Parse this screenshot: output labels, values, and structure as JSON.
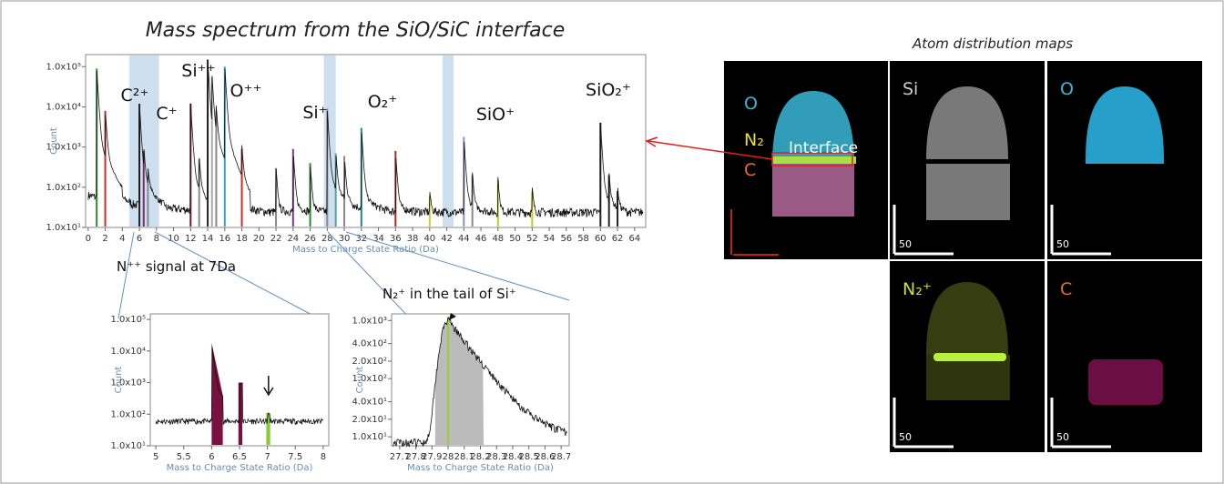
{
  "figure_title": "Mass spectrum from the SiO/SiC interface",
  "main": {
    "x_label": "Mass to Charge State Ratio (Da)",
    "y_label": "Count",
    "log_y": true,
    "xlim": [
      -0.3,
      65.3
    ],
    "xticks": [
      0,
      2,
      4,
      6,
      8,
      10,
      12,
      14,
      16,
      18,
      20,
      22,
      24,
      26,
      28,
      30,
      32,
      34,
      36,
      38,
      40,
      42,
      44,
      46,
      48,
      50,
      52,
      54,
      56,
      58,
      60,
      62,
      64
    ],
    "ylim": [
      10,
      200000
    ],
    "yticks": [
      {
        "value": 10,
        "label": "1.0x10¹"
      },
      {
        "value": 100,
        "label": "1.0x10²"
      },
      {
        "value": 1000,
        "label": "1.0x10³"
      },
      {
        "value": 10000,
        "label": "1.0x10⁴"
      },
      {
        "value": 100000,
        "label": "1.0x10⁵"
      }
    ],
    "peak_labels": [
      "C²⁺",
      "C⁺",
      "Si⁺⁺",
      "O⁺⁺",
      "Si⁺",
      "O₂⁺",
      "SiO⁺",
      "SiO₂⁺"
    ]
  },
  "inset_n": {
    "title": "N⁺⁺ signal at 7Da",
    "x_label": "Mass to Charge State Ratio (Da)",
    "y_label": "Count",
    "log_y": true,
    "xlim": [
      4.9,
      8.1
    ],
    "xticks": [
      5,
      5.5,
      6,
      6.5,
      7,
      7.5,
      8
    ],
    "ylim": [
      10,
      150000
    ],
    "yticks": [
      {
        "value": 10,
        "label": "1.0x10¹"
      },
      {
        "value": 100,
        "label": "1.0x10²"
      },
      {
        "value": 1000,
        "label": "1.0x10³"
      },
      {
        "value": 10000,
        "label": "1.0x10⁴"
      },
      {
        "value": 100000,
        "label": "1.0x10⁵"
      }
    ]
  },
  "inset_n2": {
    "title": "N₂⁺ in the tail of Si⁺",
    "x_label": "Mass to Charge State Ratio (Da)",
    "y_label": "Count",
    "log_y": true,
    "xlim": [
      27.65,
      28.75
    ],
    "xticks": [
      27.7,
      27.8,
      27.9,
      28,
      28.1,
      28.2,
      28.3,
      28.4,
      28.5,
      28.6,
      28.7
    ],
    "ylim": [
      7,
      1300
    ],
    "yticks": [
      {
        "value": 10,
        "label": "1.0x10¹"
      },
      {
        "value": 20,
        "label": "2.0x10¹"
      },
      {
        "value": 40,
        "label": "4.0x10¹"
      },
      {
        "value": 100,
        "label": "1.0x10²"
      },
      {
        "value": 200,
        "label": "2.0x10²"
      },
      {
        "value": 400,
        "label": "4.0x10²"
      },
      {
        "value": 1000,
        "label": "1.0x10³"
      }
    ]
  },
  "maps": {
    "title": "Atom distribution maps",
    "composite": {
      "labels": [
        "O",
        "N₂",
        "C"
      ],
      "annotation": "Interface"
    },
    "panels": [
      {
        "label": "Si",
        "scale": "50"
      },
      {
        "label": "O",
        "scale": "50"
      },
      {
        "label": "N₂⁺",
        "scale": "50"
      },
      {
        "label": "C",
        "scale": "50"
      }
    ]
  }
}
